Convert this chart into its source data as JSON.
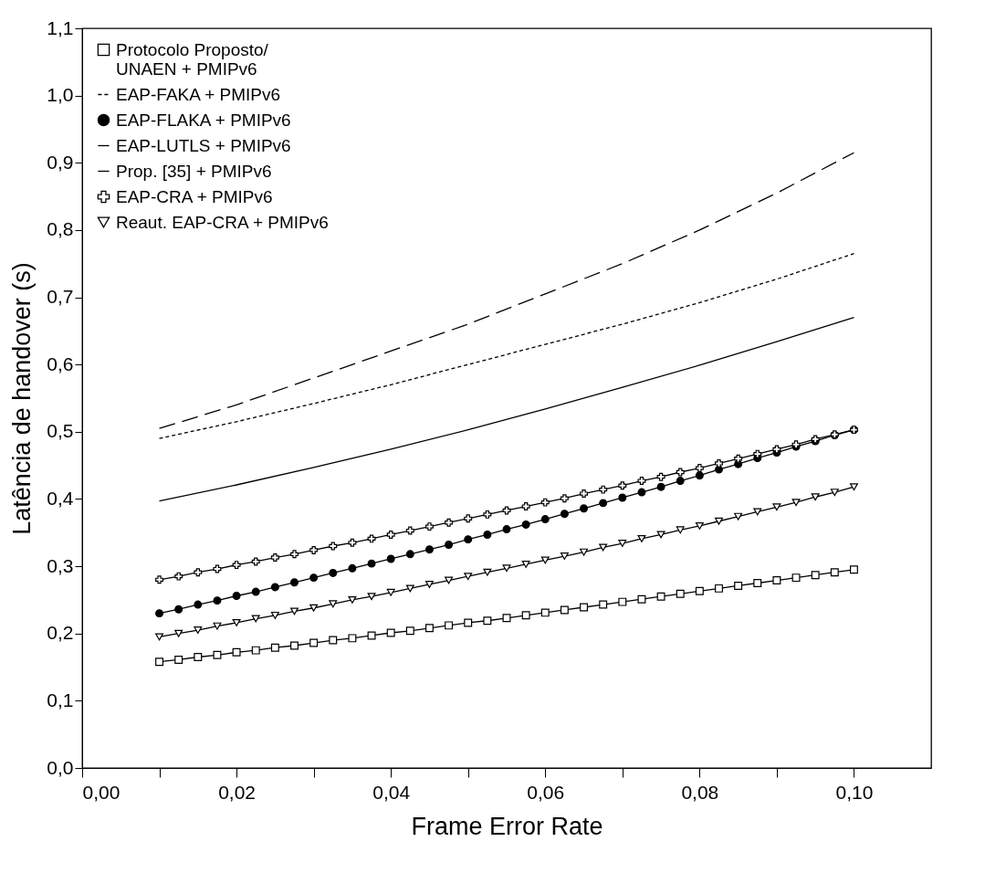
{
  "chart_data": {
    "type": "line",
    "xlabel": "Frame Error Rate",
    "ylabel": "Latência de handover (s)",
    "x": [
      0.01,
      0.0125,
      0.015,
      0.0175,
      0.02,
      0.0225,
      0.025,
      0.0275,
      0.03,
      0.0325,
      0.035,
      0.0375,
      0.04,
      0.0425,
      0.045,
      0.0475,
      0.05,
      0.0525,
      0.055,
      0.0575,
      0.06,
      0.0625,
      0.065,
      0.0675,
      0.07,
      0.0725,
      0.075,
      0.0775,
      0.08,
      0.0825,
      0.085,
      0.0875,
      0.09,
      0.0925,
      0.095,
      0.0975,
      0.1
    ],
    "series": [
      {
        "name": "Protocolo Proposto/\nUNAEN + PMIPv6",
        "color": "#000000",
        "marker": "square",
        "line_style": "solid",
        "values": [
          0.158,
          0.161,
          0.165,
          0.168,
          0.172,
          0.175,
          0.179,
          0.182,
          0.186,
          0.19,
          0.193,
          0.197,
          0.201,
          0.204,
          0.208,
          0.212,
          0.216,
          0.219,
          0.223,
          0.227,
          0.231,
          0.235,
          0.239,
          0.243,
          0.247,
          0.251,
          0.255,
          0.259,
          0.263,
          0.267,
          0.271,
          0.275,
          0.279,
          0.283,
          0.287,
          0.291,
          0.295
        ]
      },
      {
        "name": "EAP-FAKA + PMIPv6",
        "color": "#000000",
        "marker": "none",
        "line_style": "dotted",
        "x": [
          0.01,
          0.02,
          0.03,
          0.04,
          0.05,
          0.06,
          0.07,
          0.08,
          0.09,
          0.1
        ],
        "values": [
          0.49,
          0.515,
          0.542,
          0.57,
          0.6,
          0.63,
          0.66,
          0.692,
          0.727,
          0.765
        ]
      },
      {
        "name": "EAP-FLAKA + PMIPv6",
        "color": "#000000",
        "marker": "circle",
        "line_style": "solid",
        "values": [
          0.23,
          0.236,
          0.243,
          0.249,
          0.256,
          0.262,
          0.269,
          0.276,
          0.283,
          0.29,
          0.297,
          0.304,
          0.311,
          0.318,
          0.325,
          0.332,
          0.34,
          0.347,
          0.355,
          0.362,
          0.37,
          0.378,
          0.386,
          0.394,
          0.402,
          0.41,
          0.418,
          0.427,
          0.435,
          0.444,
          0.452,
          0.461,
          0.469,
          0.478,
          0.486,
          0.495,
          0.503
        ]
      },
      {
        "name": "EAP-LUTLS + PMIPv6",
        "color": "#000000",
        "marker": "none",
        "line_style": "dashed",
        "x": [
          0.01,
          0.02,
          0.03,
          0.04,
          0.05,
          0.06,
          0.07,
          0.08,
          0.09,
          0.1
        ],
        "values": [
          0.505,
          0.54,
          0.58,
          0.62,
          0.66,
          0.705,
          0.75,
          0.8,
          0.855,
          0.915
        ]
      },
      {
        "name": "Prop. [35] + PMIPv6",
        "color": "#000000",
        "marker": "none",
        "line_style": "solid",
        "x": [
          0.01,
          0.02,
          0.03,
          0.04,
          0.05,
          0.06,
          0.07,
          0.08,
          0.09,
          0.1
        ],
        "values": [
          0.397,
          0.421,
          0.447,
          0.474,
          0.503,
          0.534,
          0.566,
          0.599,
          0.634,
          0.67
        ]
      },
      {
        "name": "EAP-CRA + PMIPv6",
        "color": "#000000",
        "marker": "cross",
        "line_style": "solid",
        "values": [
          0.28,
          0.285,
          0.291,
          0.296,
          0.302,
          0.307,
          0.313,
          0.318,
          0.324,
          0.33,
          0.335,
          0.341,
          0.347,
          0.353,
          0.359,
          0.365,
          0.371,
          0.377,
          0.383,
          0.389,
          0.395,
          0.401,
          0.408,
          0.414,
          0.42,
          0.427,
          0.433,
          0.44,
          0.446,
          0.453,
          0.46,
          0.467,
          0.474,
          0.481,
          0.489,
          0.496,
          0.503
        ]
      },
      {
        "name": "Reaut. EAP-CRA + PMIPv6",
        "color": "#000000",
        "marker": "triangle",
        "line_style": "solid",
        "values": [
          0.195,
          0.2,
          0.205,
          0.211,
          0.216,
          0.222,
          0.227,
          0.233,
          0.238,
          0.244,
          0.25,
          0.255,
          0.261,
          0.267,
          0.273,
          0.279,
          0.285,
          0.291,
          0.297,
          0.303,
          0.309,
          0.315,
          0.321,
          0.328,
          0.334,
          0.341,
          0.347,
          0.354,
          0.36,
          0.367,
          0.374,
          0.381,
          0.388,
          0.395,
          0.403,
          0.41,
          0.418
        ]
      }
    ],
    "xlim": [
      0,
      0.11
    ],
    "xticks": [
      {
        "value": 0,
        "label": "0,00"
      },
      {
        "value": 0.01,
        "label": null
      },
      {
        "value": 0.02,
        "label": "0,02"
      },
      {
        "value": 0.03,
        "label": null
      },
      {
        "value": 0.04,
        "label": "0,04"
      },
      {
        "value": 0.05,
        "label": null
      },
      {
        "value": 0.06,
        "label": "0,06"
      },
      {
        "value": 0.07,
        "label": null
      },
      {
        "value": 0.08,
        "label": "0,08"
      },
      {
        "value": 0.09,
        "label": null
      },
      {
        "value": 0.1,
        "label": "0,10"
      }
    ],
    "ylim": [
      0,
      1.1
    ],
    "yticks": [
      {
        "value": 0,
        "label": "0,0"
      },
      {
        "value": 0.1,
        "label": "0,1"
      },
      {
        "value": 0.2,
        "label": "0,2"
      },
      {
        "value": 0.3,
        "label": "0,3"
      },
      {
        "value": 0.4,
        "label": "0,4"
      },
      {
        "value": 0.5,
        "label": "0,5"
      },
      {
        "value": 0.6,
        "label": "0,6"
      },
      {
        "value": 0.7,
        "label": "0,7"
      },
      {
        "value": 0.8,
        "label": "0,8"
      },
      {
        "value": 0.9,
        "label": "0,9"
      },
      {
        "value": 1,
        "label": "1,0"
      },
      {
        "value": 1.1,
        "label": "1,1"
      }
    ],
    "grid": false,
    "legend": "top left"
  }
}
